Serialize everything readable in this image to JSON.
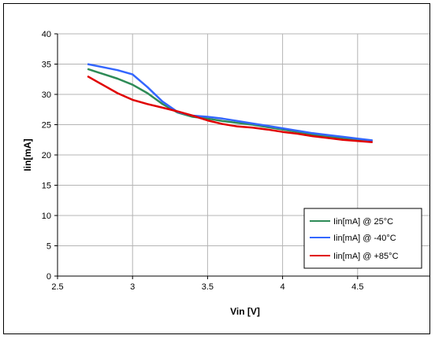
{
  "chart_data": {
    "type": "line",
    "title": "",
    "xlabel": "Vin [V]",
    "ylabel": "Iin[mA]",
    "xlim": [
      2.5,
      5
    ],
    "ylim": [
      0,
      40
    ],
    "x_ticks": [
      "2.5",
      "3",
      "3.5",
      "4",
      "4.5",
      "5"
    ],
    "y_ticks": [
      "0",
      "5",
      "10",
      "15",
      "20",
      "25",
      "30",
      "35",
      "40"
    ],
    "grid": true,
    "legend_position": "bottom-right",
    "series": [
      {
        "name": "Iin[mA] @ 25°C",
        "color": "#2e8b57",
        "x": [
          2.7,
          2.8,
          2.9,
          3.0,
          3.1,
          3.2,
          3.3,
          3.4,
          3.5,
          3.6,
          3.7,
          3.8,
          3.9,
          4.0,
          4.1,
          4.2,
          4.3,
          4.4,
          4.5,
          4.6
        ],
        "y": [
          34.2,
          33.4,
          32.6,
          31.6,
          30.2,
          28.4,
          27.0,
          26.3,
          26.0,
          25.6,
          25.3,
          25.0,
          24.6,
          24.2,
          23.8,
          23.4,
          23.0,
          22.8,
          22.6,
          22.3
        ]
      },
      {
        "name": "Iin[mA] @ -40°C",
        "color": "#3366ff",
        "x": [
          2.7,
          2.8,
          2.9,
          3.0,
          3.1,
          3.2,
          3.3,
          3.4,
          3.5,
          3.6,
          3.7,
          3.8,
          3.9,
          4.0,
          4.1,
          4.2,
          4.3,
          4.4,
          4.5,
          4.6
        ],
        "y": [
          35.0,
          34.5,
          34.0,
          33.3,
          31.2,
          28.8,
          27.1,
          26.5,
          26.3,
          26.0,
          25.6,
          25.2,
          24.8,
          24.4,
          24.0,
          23.6,
          23.3,
          23.0,
          22.7,
          22.4
        ]
      },
      {
        "name": "Iin[mA] @ +85°C",
        "color": "#e00000",
        "x": [
          2.7,
          2.8,
          2.9,
          3.0,
          3.1,
          3.2,
          3.3,
          3.4,
          3.5,
          3.6,
          3.7,
          3.8,
          3.9,
          4.0,
          4.1,
          4.2,
          4.3,
          4.4,
          4.5,
          4.6
        ],
        "y": [
          33.0,
          31.6,
          30.2,
          29.1,
          28.4,
          27.8,
          27.2,
          26.5,
          25.7,
          25.1,
          24.7,
          24.5,
          24.2,
          23.8,
          23.5,
          23.1,
          22.8,
          22.5,
          22.3,
          22.1
        ]
      }
    ]
  }
}
